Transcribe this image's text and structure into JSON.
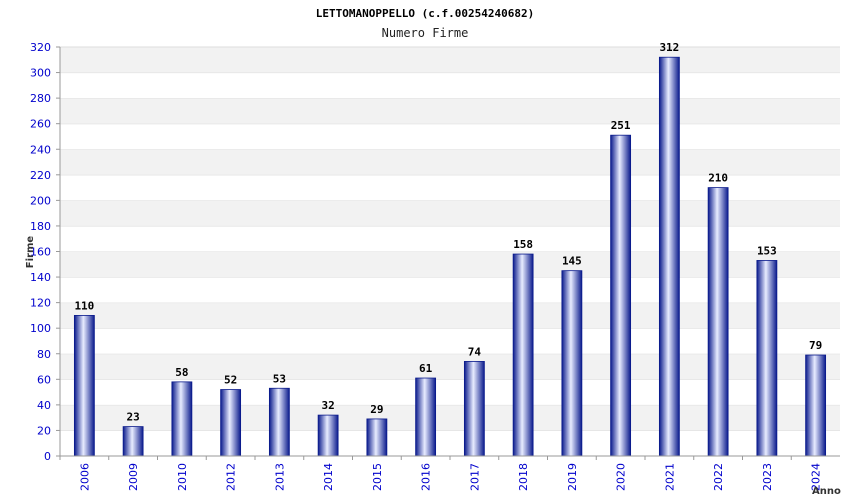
{
  "chart_data": {
    "type": "bar",
    "title": "LETTOMANOPPELLO (c.f.00254240682)",
    "subtitle": "Numero Firme",
    "xlabel": "Anno",
    "ylabel": "Firme",
    "ylim": [
      0,
      320
    ],
    "yticks": [
      0,
      20,
      40,
      60,
      80,
      100,
      120,
      140,
      160,
      180,
      200,
      220,
      240,
      260,
      280,
      300,
      320
    ],
    "categories": [
      "2006",
      "2009",
      "2010",
      "2012",
      "2013",
      "2014",
      "2015",
      "2016",
      "2017",
      "2018",
      "2019",
      "2020",
      "2021",
      "2022",
      "2023",
      "2024"
    ],
    "values": [
      110,
      23,
      58,
      52,
      53,
      32,
      29,
      61,
      74,
      158,
      145,
      251,
      312,
      210,
      153,
      79
    ],
    "grid": "alternating horizontal bands",
    "colors": {
      "bar_dark": "#0a1a8c",
      "bar_light": "#e8ecff",
      "band": "#f2f2f2",
      "tick": "#0000cc"
    }
  }
}
